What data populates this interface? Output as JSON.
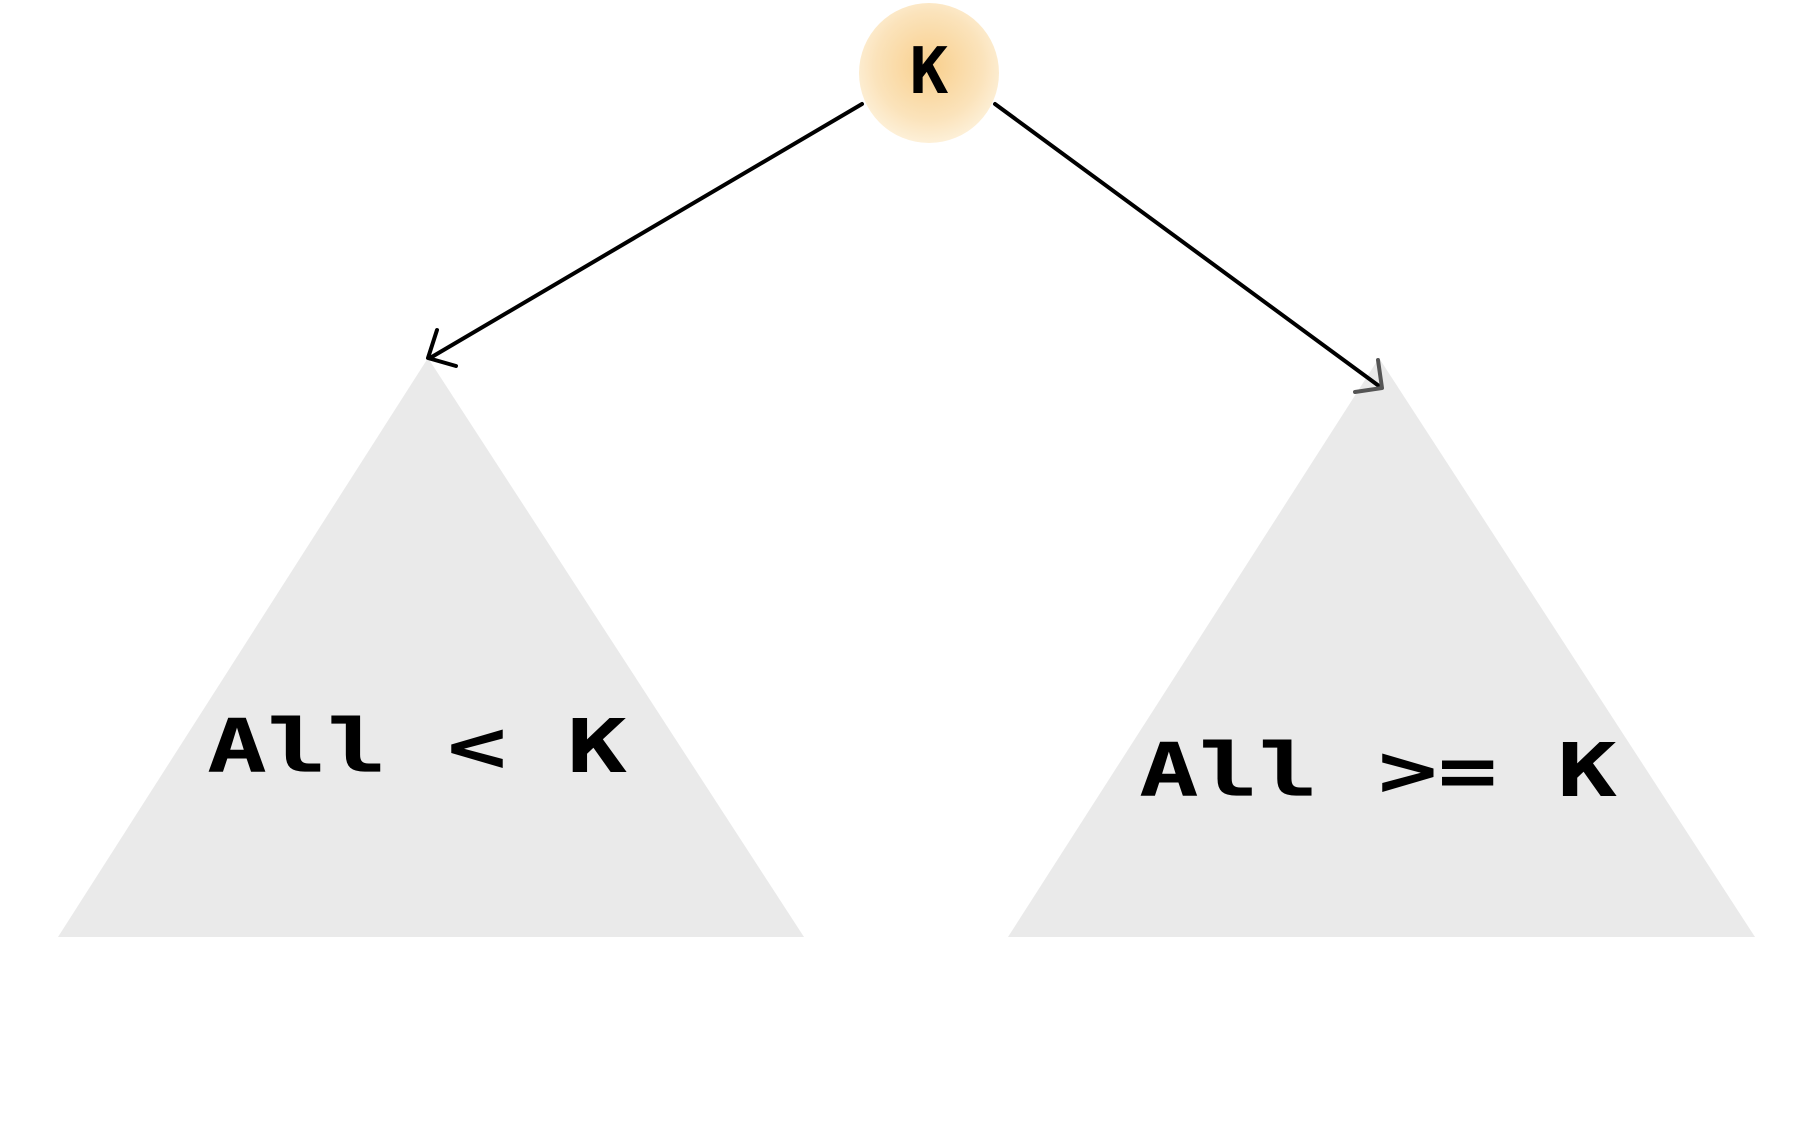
{
  "root": {
    "label": "K"
  },
  "left_subtree": {
    "label": "All < K"
  },
  "right_subtree": {
    "label": "All >= K"
  },
  "colors": {
    "background": "#ffffff",
    "triangle_fill": "#eaeaea",
    "node_center": "#f8cf8c",
    "node_edge": "#fdf0d8",
    "edge_stroke": "#000000",
    "text": "#000000"
  }
}
